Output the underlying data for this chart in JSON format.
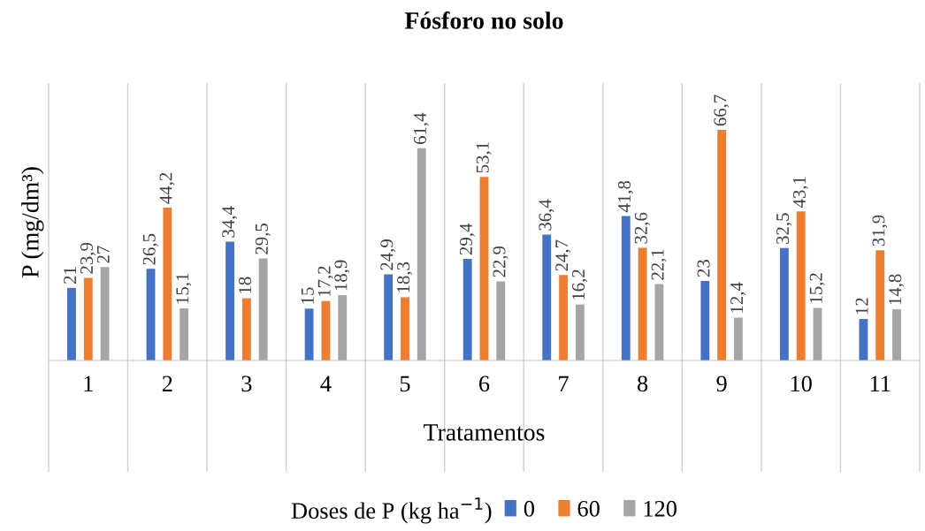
{
  "chart_data": {
    "type": "bar",
    "title": "Fósforo no solo",
    "xlabel": "Tratamentos",
    "ylabel": "P (mg/dm³)",
    "legend_title": "Doses de P (kg ha$^{−1}$)",
    "categories": [
      "1",
      "2",
      "3",
      "4",
      "5",
      "6",
      "7",
      "8",
      "9",
      "10",
      "11"
    ],
    "series": [
      {
        "name": "0",
        "color": "#4472c4",
        "values": [
          21,
          26.5,
          34.4,
          15,
          24.9,
          29.4,
          36.4,
          41.8,
          23,
          32.5,
          12
        ],
        "value_labels": [
          "21",
          "26,5",
          "34,4",
          "15",
          "24,9",
          "29,4",
          "36,4",
          "41,8",
          "23",
          "32,5",
          "12"
        ]
      },
      {
        "name": "60",
        "color": "#ed7d31",
        "values": [
          23.9,
          44.2,
          18,
          17.2,
          18.3,
          53.1,
          24.7,
          32.6,
          66.7,
          43.1,
          31.9
        ],
        "value_labels": [
          "23,9",
          "44,2",
          "18",
          "17,2",
          "18,3",
          "53,1",
          "24,7",
          "32,6",
          "66,7",
          "43,1",
          "31,9"
        ]
      },
      {
        "name": "120",
        "color": "#a5a5a5",
        "values": [
          27,
          15.1,
          29.5,
          18.9,
          61.4,
          22.9,
          16.2,
          22.1,
          12.4,
          15.2,
          14.8
        ],
        "value_labels": [
          "27",
          "15,1",
          "29,5",
          "18,9",
          "61,4",
          "22,9",
          "16,2",
          "22,1",
          "12,4",
          "15,2",
          "14,8"
        ]
      }
    ],
    "ylim": [
      0,
      80
    ],
    "grid": "x",
    "legend": "bottom",
    "tick_labels": "x"
  }
}
